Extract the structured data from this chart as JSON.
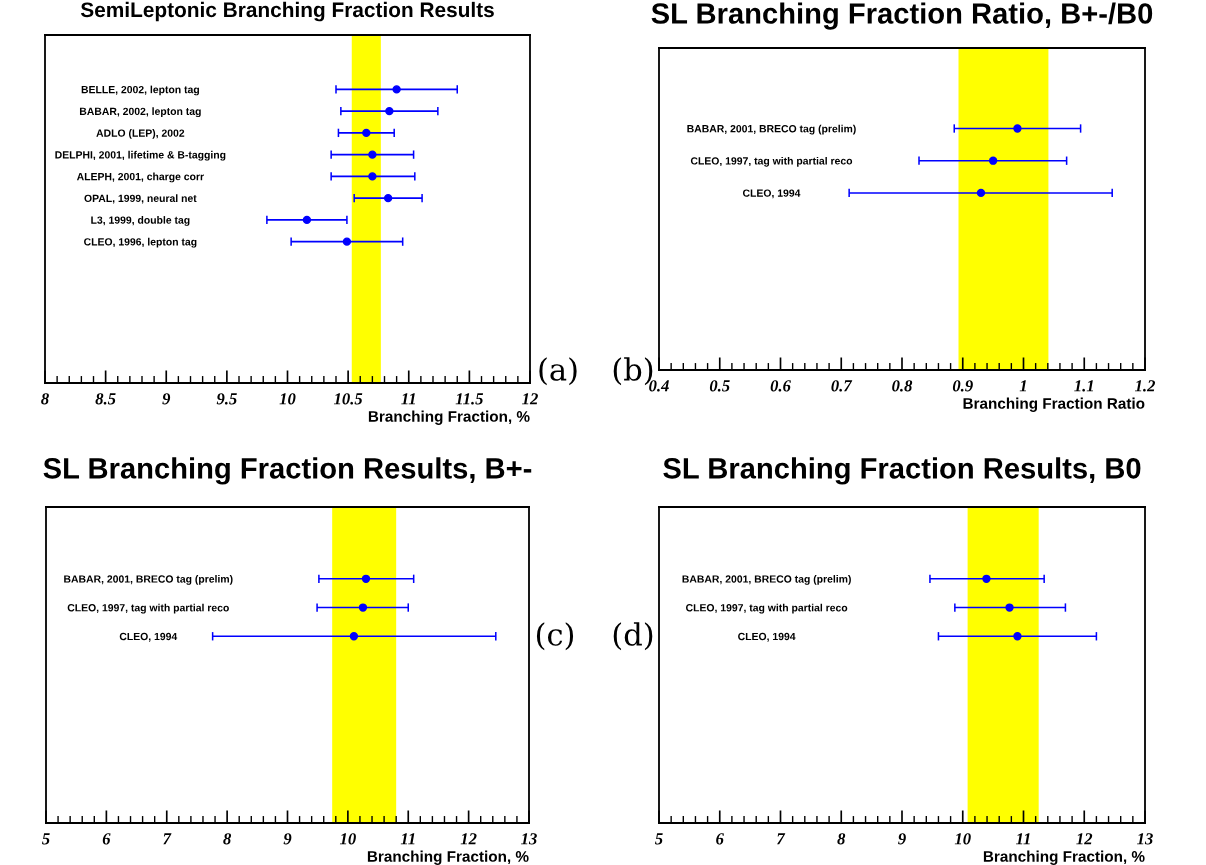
{
  "chart_data": [
    {
      "type": "scatter",
      "orientation": "horizontal",
      "title": "SemiLeptonic Branching Fraction Results",
      "xlabel": "Branching Fraction, %",
      "categories": [
        null,
        null,
        "BELLE, 2002, lepton tag",
        "BABAR, 2002, lepton tag",
        "ADLO (LEP), 2002",
        "DELPHI, 2001, lifetime & B-tagging",
        "ALEPH, 2001, charge corr",
        "OPAL, 1999, neural net",
        "L3, 1999, double tag",
        "CLEO, 1996, lepton tag",
        null,
        null,
        null,
        null,
        null,
        null
      ],
      "series": [
        {
          "color": "#0000ff",
          "values": [
            null,
            null,
            10.9,
            10.84,
            10.65,
            10.7,
            10.7,
            10.83,
            10.16,
            10.49,
            null,
            null,
            null,
            null,
            null,
            null
          ],
          "errors": [
            null,
            null,
            [
              10.4,
              11.4
            ],
            [
              10.44,
              11.24
            ],
            [
              10.42,
              10.88
            ],
            [
              10.36,
              11.04
            ],
            [
              10.36,
              11.05
            ],
            [
              10.55,
              11.11
            ],
            [
              9.83,
              10.49
            ],
            [
              10.03,
              10.95
            ],
            null,
            null,
            null,
            null,
            null,
            null
          ]
        }
      ],
      "bands": [
        {
          "axis": "x",
          "from": 10.53,
          "to": 10.77,
          "color": "#ffff00"
        }
      ],
      "xlim": [
        8,
        12
      ],
      "xticks": [
        8,
        8.5,
        9,
        9.5,
        10,
        10.5,
        11,
        11.5,
        12
      ],
      "marker": "circle",
      "grid": false,
      "legend": false,
      "annotations": [
        "(a)"
      ]
    },
    {
      "type": "scatter",
      "orientation": "horizontal",
      "title": "SL Branching Fraction Ratio, B+-/B0",
      "xlabel": "Branching Fraction Ratio",
      "categories": [
        null,
        null,
        "BABAR, 2001, BRECO tag (prelim)",
        "CLEO, 1997, tag with partial reco",
        "CLEO, 1994",
        null,
        null,
        null,
        null,
        null
      ],
      "series": [
        {
          "color": "#0000ff",
          "values": [
            null,
            null,
            0.99,
            0.95,
            0.93,
            null,
            null,
            null,
            null,
            null
          ],
          "errors": [
            null,
            null,
            [
              0.886,
              1.094
            ],
            [
              0.828,
              1.071
            ],
            [
              0.713,
              1.146
            ],
            null,
            null,
            null,
            null,
            null
          ]
        }
      ],
      "bands": [
        {
          "axis": "x",
          "from": 0.893,
          "to": 1.041,
          "color": "#ffff00"
        }
      ],
      "xlim": [
        0.4,
        1.2
      ],
      "xticks": [
        0.4,
        0.5,
        0.6,
        0.7,
        0.8,
        0.9,
        1,
        1.1,
        1.2
      ],
      "marker": "circle",
      "grid": false,
      "legend": false,
      "annotations": [
        "(b)"
      ]
    },
    {
      "type": "scatter",
      "orientation": "horizontal",
      "title": "SL Branching Fraction Results, B+-",
      "xlabel": "Branching Fraction, %",
      "categories": [
        null,
        null,
        "BABAR, 2001, BRECO tag (prelim)",
        "CLEO, 1997, tag with partial reco",
        "CLEO, 1994",
        null,
        null,
        null,
        null,
        null,
        null
      ],
      "series": [
        {
          "color": "#0000ff",
          "values": [
            null,
            null,
            10.3,
            10.25,
            10.1,
            null,
            null,
            null,
            null,
            null,
            null
          ],
          "errors": [
            null,
            null,
            [
              9.52,
              11.09
            ],
            [
              9.49,
              11.0
            ],
            [
              7.76,
              12.45
            ],
            null,
            null,
            null,
            null,
            null,
            null
          ]
        }
      ],
      "bands": [
        {
          "axis": "x",
          "from": 9.74,
          "to": 10.8,
          "color": "#ffff00"
        }
      ],
      "xlim": [
        5,
        13
      ],
      "xticks": [
        5,
        6,
        7,
        8,
        9,
        10,
        11,
        12,
        13
      ],
      "marker": "circle",
      "grid": false,
      "legend": false,
      "annotations": [
        "(c)"
      ]
    },
    {
      "type": "scatter",
      "orientation": "horizontal",
      "title": "SL Branching Fraction Results, B0",
      "xlabel": "Branching Fraction, %",
      "categories": [
        null,
        null,
        "BABAR, 2001, BRECO tag (prelim)",
        "CLEO, 1997, tag with partial reco",
        "CLEO, 1994",
        null,
        null,
        null,
        null,
        null,
        null
      ],
      "series": [
        {
          "color": "#0000ff",
          "values": [
            null,
            null,
            10.39,
            10.77,
            10.9,
            null,
            null,
            null,
            null,
            null,
            null
          ],
          "errors": [
            null,
            null,
            [
              9.46,
              11.34
            ],
            [
              9.87,
              11.69
            ],
            [
              9.6,
              12.2
            ],
            null,
            null,
            null,
            null,
            null,
            null
          ]
        }
      ],
      "bands": [
        {
          "axis": "x",
          "from": 10.08,
          "to": 11.25,
          "color": "#ffff00"
        }
      ],
      "xlim": [
        5,
        13
      ],
      "xticks": [
        5,
        6,
        7,
        8,
        9,
        10,
        11,
        12,
        13
      ],
      "marker": "circle",
      "grid": false,
      "legend": false,
      "annotations": [
        "(d)"
      ]
    }
  ]
}
